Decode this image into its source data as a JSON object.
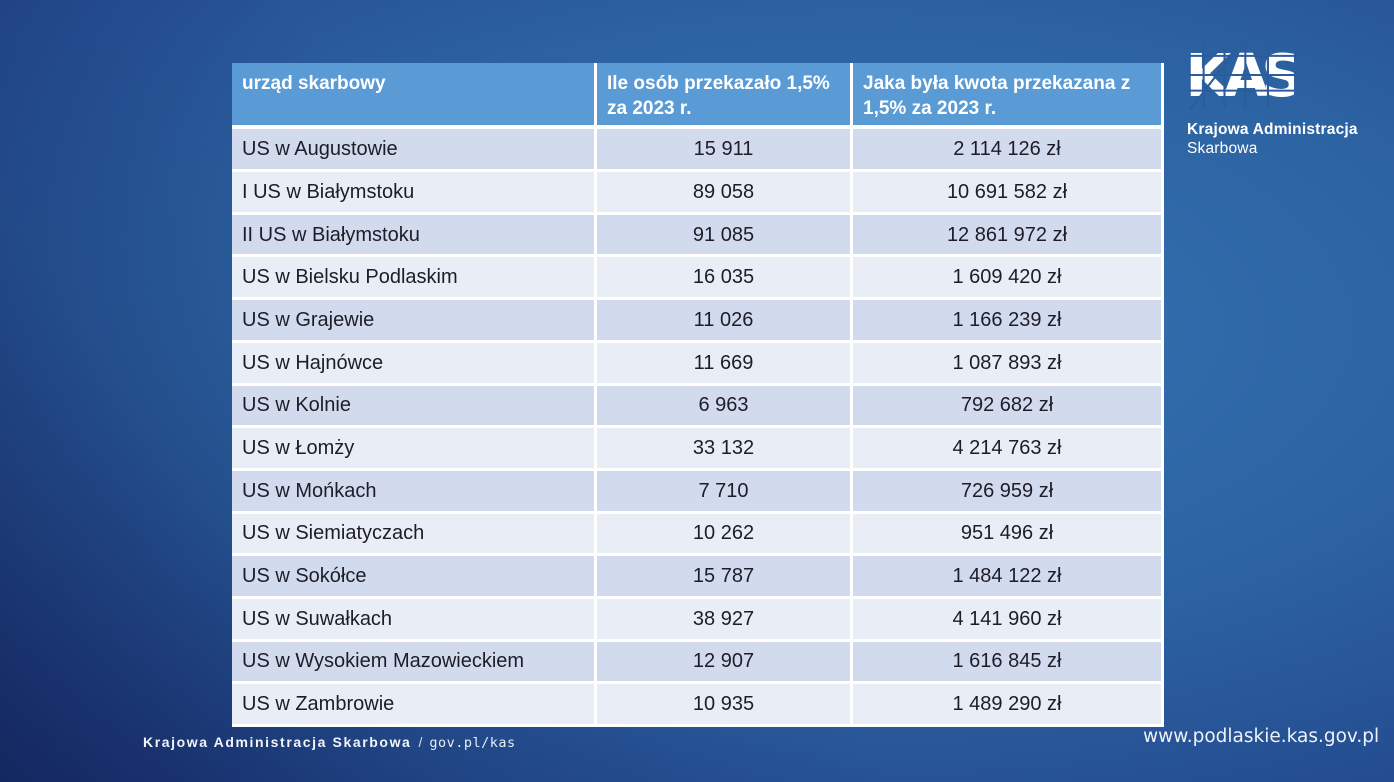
{
  "colors": {
    "header-bg": "#5b9bd5",
    "header-text": "#ffffff",
    "band-odd": "#d2dbee",
    "band-even": "#e9edf5",
    "cell-text": "#1d1d27",
    "bg-center": "#3573b1",
    "bg-edge": "#1b2f79"
  },
  "logo": {
    "mark": "KAS",
    "line1": "Krajowa Administracja",
    "line2": "Skarbowa"
  },
  "table": {
    "headers": [
      "urząd skarbowy",
      "Ile osób przekazało 1,5% za 2023 r.",
      "Jaka była kwota przekazana z 1,5% za 2023 r."
    ],
    "rows": [
      [
        "US w Augustowie",
        "15 911",
        "2 114 126 zł"
      ],
      [
        "I US w Białymstoku",
        "89 058",
        "10 691 582 zł"
      ],
      [
        "II US w Białymstoku",
        "91 085",
        "12 861 972 zł"
      ],
      [
        "US w Bielsku Podlaskim",
        "16 035",
        "1 609 420 zł"
      ],
      [
        "US w Grajewie",
        "11 026",
        "1 166 239 zł"
      ],
      [
        "US w Hajnówce",
        "11 669",
        "1 087 893 zł"
      ],
      [
        "US w Kolnie",
        "6 963",
        "792 682 zł"
      ],
      [
        "US w Łomży",
        "33 132",
        "4 214 763 zł"
      ],
      [
        "US w Mońkach",
        "7 710",
        "726 959 zł"
      ],
      [
        "US w Siemiatyczach",
        "10 262",
        "951 496 zł"
      ],
      [
        "US w Sokółce",
        "15 787",
        "1 484 122 zł"
      ],
      [
        "US w Suwałkach",
        "38 927",
        "4 141 960 zł"
      ],
      [
        "US w Wysokiem Mazowieckiem",
        "12 907",
        "1 616 845 zł"
      ],
      [
        "US w Zambrowie",
        "10 935",
        "1 489 290 zł"
      ]
    ]
  },
  "footer": {
    "brand": "Krajowa Administracja Skarbowa",
    "separator": "/",
    "link": "gov.pl/kas",
    "website": "www.podlaskie.kas.gov.pl"
  }
}
